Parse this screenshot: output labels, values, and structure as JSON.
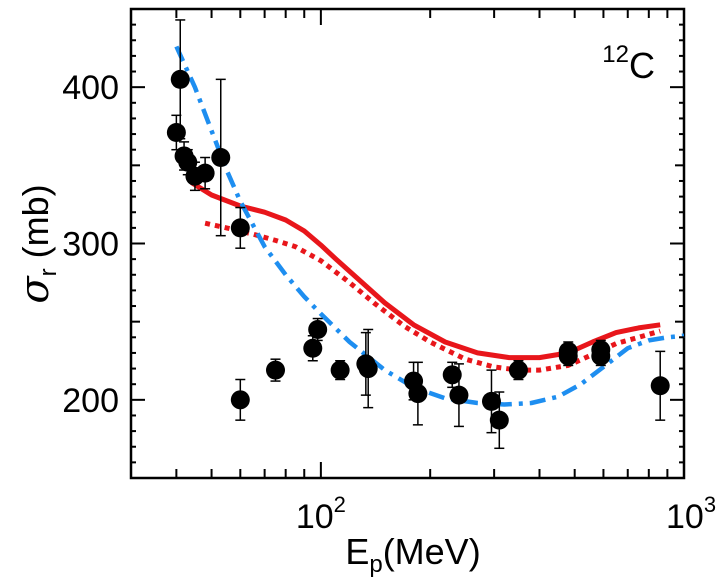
{
  "chart_data": {
    "type": "scatter",
    "annotation": {
      "mass_number": "12",
      "element": "C"
    },
    "xlabel": {
      "main": "E",
      "sub": "p",
      "rest": "(MeV)"
    },
    "ylabel": {
      "main": "σ",
      "sub": "r",
      "rest": " (mb)"
    },
    "xscale": "log",
    "xlim": [
      30,
      1000
    ],
    "ylim": [
      150,
      450
    ],
    "x_ticks": [
      {
        "value": 100,
        "base": "10",
        "exp": "2"
      },
      {
        "value": 1000,
        "base": "10",
        "exp": "3"
      }
    ],
    "y_ticks": [
      200,
      300,
      400
    ],
    "grid": false,
    "legend": "none",
    "points": [
      {
        "x": 40,
        "y": 371,
        "err": 11
      },
      {
        "x": 41,
        "y": 405,
        "err": 38
      },
      {
        "x": 42,
        "y": 356,
        "err": 9
      },
      {
        "x": 43,
        "y": 352,
        "err": 8
      },
      {
        "x": 45,
        "y": 343,
        "err": 9
      },
      {
        "x": 48,
        "y": 345,
        "err": 10
      },
      {
        "x": 53,
        "y": 355,
        "err": 50
      },
      {
        "x": 60,
        "y": 310,
        "err": 13
      },
      {
        "x": 60,
        "y": 200,
        "err": 13
      },
      {
        "x": 75,
        "y": 219,
        "err": 7
      },
      {
        "x": 95,
        "y": 233,
        "err": 8
      },
      {
        "x": 98,
        "y": 245,
        "err": 7
      },
      {
        "x": 113,
        "y": 219,
        "err": 6
      },
      {
        "x": 133,
        "y": 223,
        "err": 20
      },
      {
        "x": 135,
        "y": 220,
        "err": 25
      },
      {
        "x": 180,
        "y": 212,
        "err": 12
      },
      {
        "x": 185,
        "y": 204,
        "err": 20
      },
      {
        "x": 230,
        "y": 216,
        "err": 8
      },
      {
        "x": 240,
        "y": 203,
        "err": 20
      },
      {
        "x": 295,
        "y": 199,
        "err": 20
      },
      {
        "x": 310,
        "y": 187,
        "err": 18
      },
      {
        "x": 350,
        "y": 219,
        "err": 6
      },
      {
        "x": 480,
        "y": 231,
        "err": 6
      },
      {
        "x": 480,
        "y": 228,
        "err": 6
      },
      {
        "x": 590,
        "y": 232,
        "err": 6
      },
      {
        "x": 590,
        "y": 228,
        "err": 6
      },
      {
        "x": 860,
        "y": 209,
        "err": 22
      }
    ],
    "curves": [
      {
        "style": "solid",
        "color": "#e8161b",
        "x": [
          44,
          50,
          60,
          70,
          80,
          90,
          100,
          110,
          130,
          150,
          180,
          220,
          270,
          330,
          400,
          480,
          560,
          650,
          750,
          860
        ],
        "y": [
          339,
          331,
          324,
          320,
          315,
          308,
          299,
          290,
          275,
          262,
          248,
          237,
          230,
          227,
          227,
          230,
          237,
          243,
          246,
          248
        ]
      },
      {
        "style": "dotted",
        "color": "#e8161b",
        "x": [
          48,
          55,
          65,
          75,
          85,
          100,
          120,
          140,
          170,
          200,
          250,
          300,
          350,
          400,
          480,
          560,
          650,
          750,
          860
        ],
        "y": [
          313,
          310,
          306,
          302,
          298,
          289,
          275,
          262,
          247,
          237,
          226,
          221,
          219,
          219,
          222,
          229,
          236,
          240,
          244
        ]
      },
      {
        "style": "dash-dot",
        "color": "#1e8ef0",
        "x": [
          40,
          45,
          50,
          55,
          60,
          70,
          80,
          90,
          100,
          120,
          150,
          180,
          220,
          270,
          320,
          380,
          450,
          520,
          600,
          700,
          800,
          900,
          1000
        ],
        "y": [
          426,
          400,
          372,
          347,
          327,
          298,
          280,
          266,
          255,
          237,
          219,
          208,
          201,
          198,
          197,
          198,
          202,
          210,
          221,
          233,
          238,
          240,
          241
        ]
      }
    ]
  }
}
